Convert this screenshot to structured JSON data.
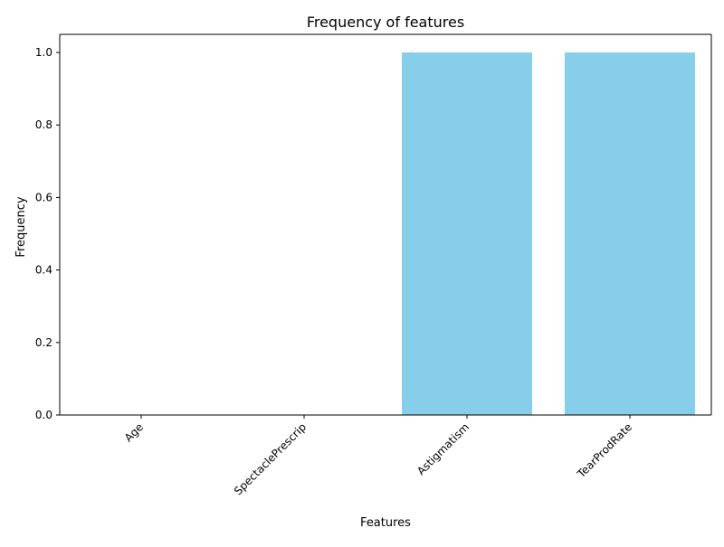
{
  "chart_data": {
    "type": "bar",
    "title": "Frequency of features",
    "xlabel": "Features",
    "ylabel": "Frequency",
    "categories": [
      "Age",
      "SpectaclePrescrip",
      "Astigmatism",
      "TearProdRate"
    ],
    "values": [
      0,
      0,
      1,
      1
    ],
    "ylim": [
      0,
      1.05
    ],
    "yticks": [
      "0.0",
      "0.2",
      "0.4",
      "0.6",
      "0.8",
      "1.0"
    ],
    "bar_color": "#87ceeb",
    "grid": false,
    "legend": "none"
  }
}
